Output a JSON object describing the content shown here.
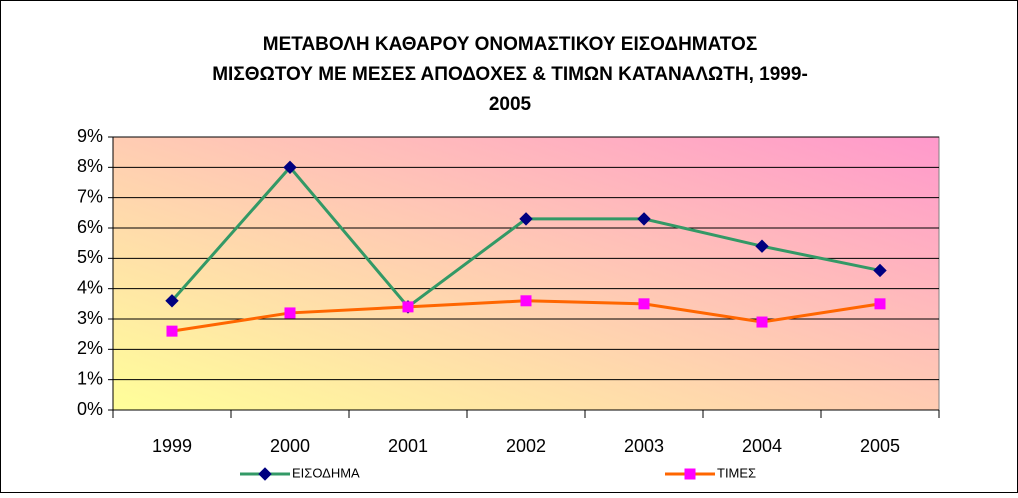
{
  "chart_data": {
    "type": "line",
    "title": [
      "ΜΕΤΑΒΟΛΗ ΚΑΘΑΡΟΥ ΟΝΟΜΑΣΤΙΚΟΥ ΕΙΣΟΔΗΜΑΤΟΣ",
      "ΜΙΣΘΩΤΟΥ ΜΕ ΜΕΣΕΣ ΑΠΟΔΟΧΕΣ & ΤΙΜΩΝ ΚΑΤΑΝΑΛΩΤΗ, 1999-",
      "2005"
    ],
    "categories": [
      "1999",
      "2000",
      "2001",
      "2002",
      "2003",
      "2004",
      "2005"
    ],
    "series": [
      {
        "name": "ΕΙΣΟΔΗΜΑ",
        "color": "#339966",
        "marker_color": "#000080",
        "marker": "diamond",
        "values": [
          3.6,
          8.0,
          3.4,
          6.3,
          6.3,
          5.4,
          4.6
        ]
      },
      {
        "name": "ΤΙΜΕΣ",
        "color": "#ff6600",
        "marker_color": "#ff00ff",
        "marker": "square",
        "values": [
          2.6,
          3.2,
          3.4,
          3.6,
          3.5,
          2.9,
          3.5
        ]
      }
    ],
    "ylim": [
      0,
      9
    ],
    "yticks": [
      {
        "value": 0,
        "label": "0%"
      },
      {
        "value": 1,
        "label": "1%"
      },
      {
        "value": 2,
        "label": "2%"
      },
      {
        "value": 3,
        "label": "3%"
      },
      {
        "value": 4,
        "label": "4%"
      },
      {
        "value": 5,
        "label": "5%"
      },
      {
        "value": 6,
        "label": "6%"
      },
      {
        "value": 7,
        "label": "7%"
      },
      {
        "value": 8,
        "label": "8%"
      },
      {
        "value": 9,
        "label": "9%"
      }
    ],
    "grid": true,
    "legend": "bottom"
  }
}
